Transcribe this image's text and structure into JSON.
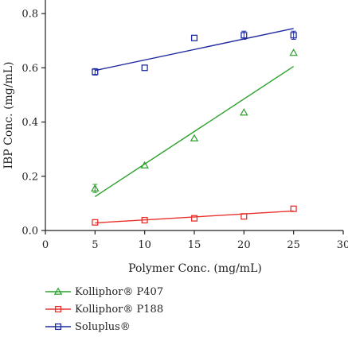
{
  "chart_data": {
    "type": "scatter",
    "xlabel": "Polymer Conc. (mg/mL)",
    "ylabel": "IBP Conc. (mg/mL)",
    "xlim": [
      0,
      30
    ],
    "ylim": [
      0,
      0.85
    ],
    "x_ticks": [
      0,
      5,
      10,
      15,
      20,
      25,
      30
    ],
    "y_ticks": [
      0.0,
      0.2,
      0.4,
      0.6,
      0.8
    ],
    "x_tick_labels": [
      "0",
      "5",
      "10",
      "15",
      "20",
      "25",
      "30"
    ],
    "y_tick_labels": [
      "0.0",
      "0.2",
      "0.4",
      "0.6",
      "0.8"
    ],
    "grid": false,
    "legend_position": "bottom",
    "series": [
      {
        "name": "Kolliphor® P407",
        "color": "#2ca02c",
        "marker": "triangle",
        "x": [
          5,
          10,
          15,
          20,
          25
        ],
        "y": [
          0.155,
          0.24,
          0.34,
          0.435,
          0.655
        ],
        "err": [
          0.015,
          0.005,
          0.005,
          0.005,
          0.005
        ],
        "fit": [
          [
            5,
            0.125
          ],
          [
            25,
            0.605
          ]
        ]
      },
      {
        "name": "Kolliphor® P188",
        "color": "#e8302c",
        "marker": "square",
        "x": [
          5,
          10,
          15,
          20,
          25
        ],
        "y": [
          0.03,
          0.038,
          0.045,
          0.052,
          0.08
        ],
        "err": [
          0.003,
          0.003,
          0.003,
          0.003,
          0.003
        ],
        "fit": [
          [
            5,
            0.028
          ],
          [
            25,
            0.072
          ]
        ]
      },
      {
        "name": "Soluplus®",
        "color": "#1f2aa0",
        "marker": "square",
        "x": [
          5,
          10,
          15,
          20,
          25
        ],
        "y": [
          0.585,
          0.6,
          0.71,
          0.72,
          0.72
        ],
        "err": [
          0.012,
          0.005,
          0.005,
          0.015,
          0.015
        ],
        "fit": [
          [
            5,
            0.59
          ],
          [
            25,
            0.745
          ]
        ]
      }
    ]
  }
}
